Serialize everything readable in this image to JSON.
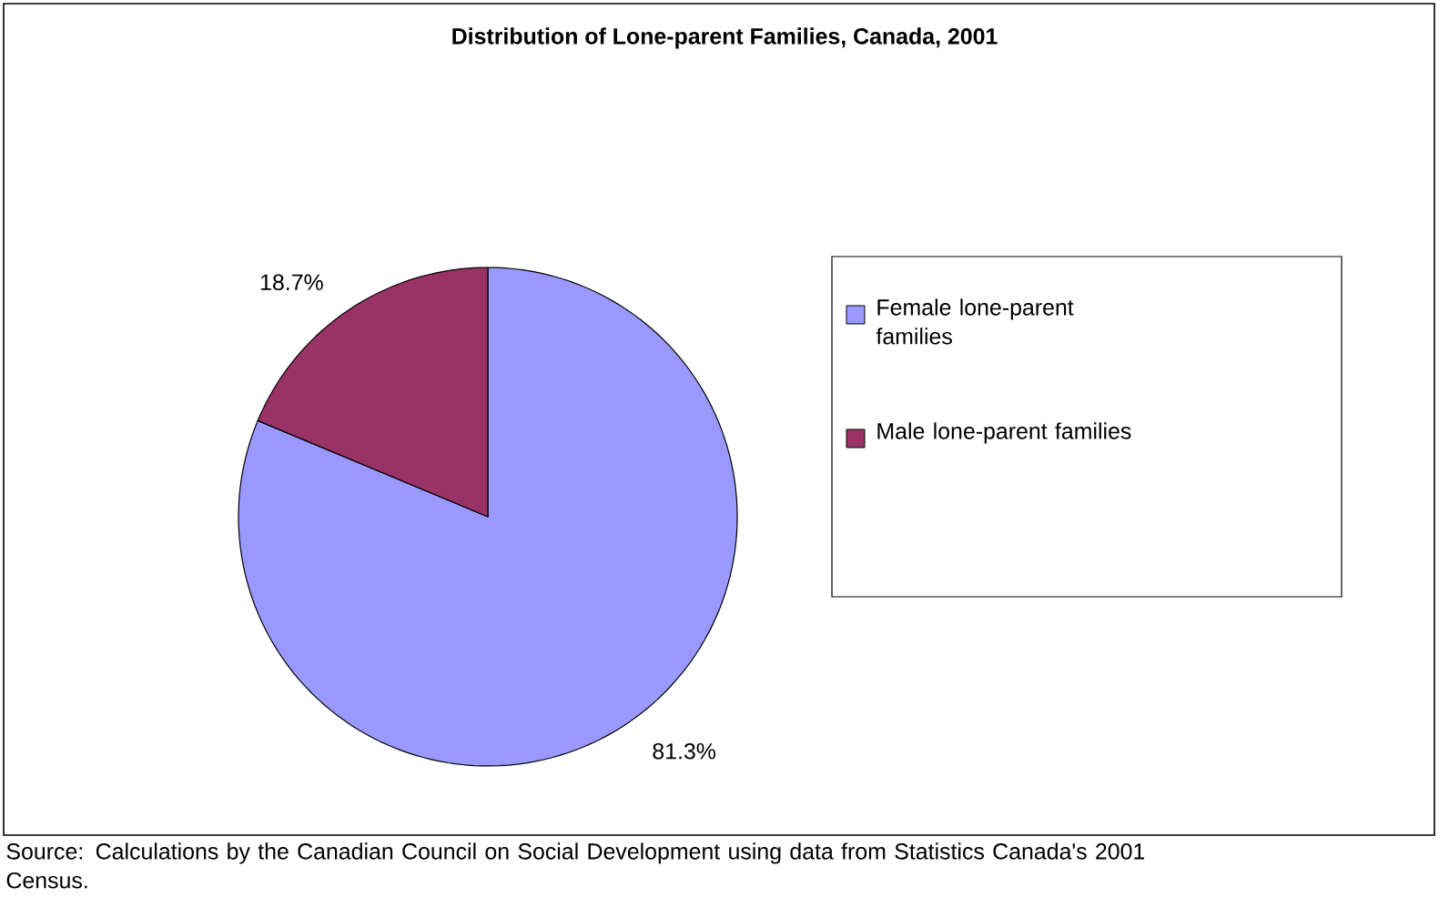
{
  "chart_data": {
    "type": "pie",
    "title": "Distribution of Lone-parent Families, Canada, 2001",
    "categories": [
      "Female lone-parent families",
      "Male lone-parent families"
    ],
    "values": [
      81.3,
      18.7
    ],
    "colors": [
      "#9999ff",
      "#993366"
    ],
    "value_labels": [
      "81.3%",
      "18.7%"
    ],
    "legend": "right",
    "annotations": [
      "Source: Calculations by the Canadian Council on Social Development using data from Statistics Canada's 2001 Census."
    ]
  }
}
